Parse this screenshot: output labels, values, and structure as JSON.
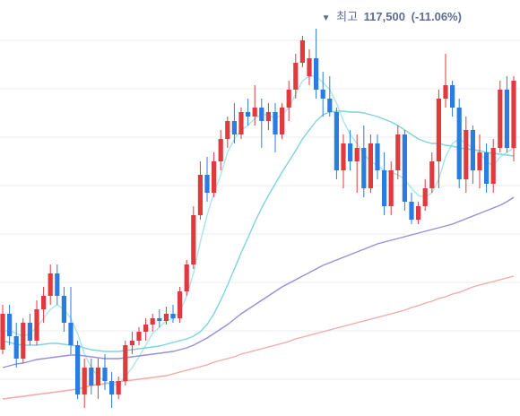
{
  "chart_data": {
    "type": "candlestick",
    "annotation": {
      "marker": "▼",
      "label": "최고",
      "value": 117500,
      "value_label": "117,500",
      "change": -11.06,
      "change_label": "(-11.06%)"
    },
    "open": [
      81700,
      85700,
      83200,
      80700,
      84700,
      82700,
      86200,
      87700,
      90200,
      87700,
      84700,
      82200,
      76700,
      79700,
      77700,
      79700,
      78200,
      76700,
      78200,
      82200,
      82700,
      83700,
      84500,
      85200,
      84900,
      85700,
      85200,
      88200,
      91200,
      96700,
      101200,
      99200,
      102700,
      105200,
      107200,
      105700,
      108200,
      107700,
      108700,
      107200,
      108200,
      105700,
      108700,
      110700,
      113700,
      112200,
      114200,
      110700,
      109700,
      108200,
      101700,
      104700,
      102700,
      104200,
      99700,
      104700,
      101700,
      97700,
      101700,
      105700,
      98200,
      96200,
      97700,
      99700,
      102700,
      109700,
      111200,
      108700,
      100700,
      106200,
      101700,
      103700,
      100200,
      104200,
      110700,
      104200
    ],
    "high": [
      86700,
      86700,
      84700,
      85200,
      85700,
      87200,
      88700,
      91200,
      91200,
      88700,
      88700,
      82700,
      80700,
      80700,
      80700,
      81200,
      79200,
      78700,
      82700,
      83700,
      84200,
      85200,
      85700,
      86200,
      86500,
      86700,
      88700,
      91700,
      97700,
      102700,
      103200,
      103700,
      106200,
      107700,
      109200,
      108700,
      109700,
      111200,
      109700,
      109200,
      109200,
      109200,
      111700,
      114700,
      116700,
      115200,
      117500,
      112700,
      112200,
      108700,
      105700,
      106200,
      105700,
      106700,
      105700,
      105700,
      103700,
      102700,
      106700,
      106200,
      99200,
      98200,
      100700,
      103700,
      110700,
      114700,
      111700,
      109700,
      107700,
      106700,
      105700,
      104700,
      105200,
      111700,
      112200,
      112200
    ],
    "low": [
      81200,
      82200,
      79700,
      80200,
      82200,
      82200,
      84700,
      86700,
      86700,
      83700,
      81200,
      76200,
      75200,
      76700,
      76200,
      77200,
      75200,
      76200,
      77700,
      81200,
      82200,
      82700,
      83700,
      84200,
      84500,
      84700,
      84700,
      87700,
      90700,
      96200,
      98200,
      98700,
      101700,
      104200,
      104700,
      105200,
      106700,
      106700,
      104200,
      106200,
      103700,
      105200,
      107200,
      109700,
      113200,
      111200,
      109700,
      107700,
      107700,
      100700,
      99700,
      101700,
      99200,
      98700,
      99200,
      100700,
      96700,
      96700,
      100700,
      97200,
      95700,
      95700,
      97200,
      99200,
      99700,
      108700,
      107700,
      99700,
      99200,
      100200,
      99700,
      99200,
      99200,
      103700,
      103700,
      102700
    ],
    "close": [
      85700,
      83200,
      80700,
      84700,
      82700,
      86200,
      87700,
      90200,
      87700,
      84700,
      82200,
      76700,
      79700,
      77700,
      79700,
      78200,
      76700,
      78200,
      82200,
      82700,
      83700,
      84500,
      85200,
      84900,
      85700,
      85200,
      88200,
      91200,
      96700,
      101200,
      99200,
      102700,
      105200,
      107200,
      105700,
      108200,
      107700,
      108700,
      107200,
      108200,
      105700,
      108700,
      110700,
      113700,
      116200,
      114200,
      110700,
      109700,
      108200,
      101700,
      104700,
      102700,
      104200,
      99700,
      104700,
      101700,
      97700,
      101700,
      105700,
      98200,
      96200,
      97700,
      99700,
      102700,
      109700,
      111200,
      108700,
      100700,
      106200,
      101700,
      103700,
      100200,
      104200,
      110700,
      104200,
      111700
    ],
    "up_color": "#e0393e",
    "down_color": "#2b7ce0",
    "lines": [
      {
        "color": "#a7e6ea",
        "values": [
          83700,
          83900,
          83500,
          83200,
          83500,
          84200,
          85200,
          86200,
          86700,
          86200,
          85200,
          83500,
          81200,
          79700,
          78700,
          78200,
          77700,
          77900,
          78700,
          79700,
          80900,
          82200,
          83500,
          84200,
          84900,
          85200,
          85900,
          87700,
          90200,
          93700,
          96700,
          99200,
          101200,
          103700,
          105200,
          106200,
          106700,
          107500,
          107900,
          107900,
          107500,
          107900,
          108700,
          110200,
          111700,
          112200,
          112200,
          111500,
          110700,
          109200,
          107200,
          105700,
          104700,
          103500,
          102700,
          102200,
          101700,
          101500,
          101200,
          100700,
          99700,
          98900,
          98700,
          99200,
          100700,
          103200,
          104700,
          105200,
          104700,
          104200,
          103700,
          102700,
          102200,
          103200,
          103700,
          104200
        ]
      },
      {
        "color": "#7fd3dc",
        "values": [
          82700,
          82500,
          82300,
          82200,
          82200,
          82200,
          82300,
          82400,
          82400,
          82300,
          82200,
          82100,
          81900,
          81700,
          81600,
          81500,
          81500,
          81500,
          81600,
          81700,
          81800,
          81900,
          82000,
          82100,
          82300,
          82500,
          82700,
          82900,
          83200,
          83700,
          84500,
          85700,
          87200,
          88900,
          90700,
          92500,
          94200,
          95900,
          97500,
          98900,
          100200,
          101500,
          102700,
          103900,
          105200,
          106200,
          107200,
          107900,
          108200,
          108300,
          108300,
          108200,
          108200,
          108100,
          107900,
          107700,
          107400,
          107100,
          106700,
          106200,
          105700,
          105200,
          104900,
          104700,
          104700,
          104500,
          104400,
          104200,
          104100,
          104000,
          103900,
          103700,
          103600,
          103500,
          103400,
          103300
        ]
      },
      {
        "color": "#9a8fd6",
        "values": [
          79700,
          79900,
          80100,
          80200,
          80400,
          80600,
          80700,
          80800,
          80900,
          81000,
          81100,
          81100,
          81000,
          80900,
          80800,
          80700,
          80700,
          80700,
          80800,
          80900,
          81000,
          81100,
          81200,
          81300,
          81400,
          81500,
          81700,
          81900,
          82200,
          82600,
          83000,
          83500,
          84000,
          84500,
          85100,
          85700,
          86200,
          86700,
          87200,
          87700,
          88200,
          88700,
          89100,
          89500,
          89900,
          90300,
          90700,
          91100,
          91400,
          91700,
          92000,
          92300,
          92600,
          92900,
          93200,
          93500,
          93700,
          93900,
          94100,
          94300,
          94500,
          94700,
          94900,
          95100,
          95300,
          95500,
          95700,
          96000,
          96300,
          96600,
          96900,
          97200,
          97500,
          97800,
          98200,
          98700
        ]
      },
      {
        "color": "#f2aaa8",
        "values": [
          76200,
          76300,
          76400,
          76500,
          76600,
          76700,
          76800,
          76900,
          77000,
          77100,
          77200,
          77300,
          77500,
          77700,
          77800,
          77900,
          78000,
          78100,
          78200,
          78300,
          78400,
          78500,
          78600,
          78700,
          78800,
          79000,
          79200,
          79400,
          79600,
          79800,
          80000,
          80300,
          80500,
          80700,
          80900,
          81200,
          81400,
          81600,
          81800,
          82000,
          82200,
          82400,
          82600,
          82900,
          83100,
          83300,
          83500,
          83700,
          83900,
          84100,
          84300,
          84500,
          84700,
          84900,
          85100,
          85300,
          85500,
          85700,
          85900,
          86100,
          86400,
          86600,
          86900,
          87100,
          87400,
          87600,
          87900,
          88100,
          88400,
          88700,
          88900,
          89100,
          89300,
          89500,
          89700,
          89900
        ]
      }
    ],
    "ylim": [
      74300,
      120700
    ],
    "gridlines": [
      116200,
      110800,
      105400,
      100000,
      94600,
      89200,
      83800,
      78400
    ],
    "grid": true
  }
}
